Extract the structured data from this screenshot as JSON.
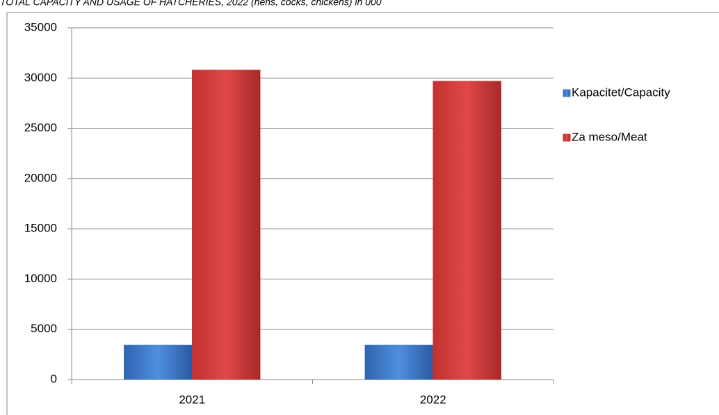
{
  "chart_data": {
    "type": "bar",
    "title": "TOTAL CAPACITY AND USAGE OF HATCHERIES, 2022 (hens, cocks, chickens) in 000",
    "categories": [
      "2021",
      "2022"
    ],
    "series": [
      {
        "name": "Kapacitet/Capacity",
        "color": "#3f7fd0",
        "values": [
          3450,
          3450
        ]
      },
      {
        "name": "Za meso/Meat",
        "color": "#d43a3a",
        "values": [
          30800,
          29700
        ]
      }
    ],
    "ylim": [
      0,
      35000
    ],
    "yticks": [
      0,
      5000,
      10000,
      15000,
      20000,
      25000,
      30000,
      35000
    ],
    "grid": true,
    "legend": "right"
  }
}
